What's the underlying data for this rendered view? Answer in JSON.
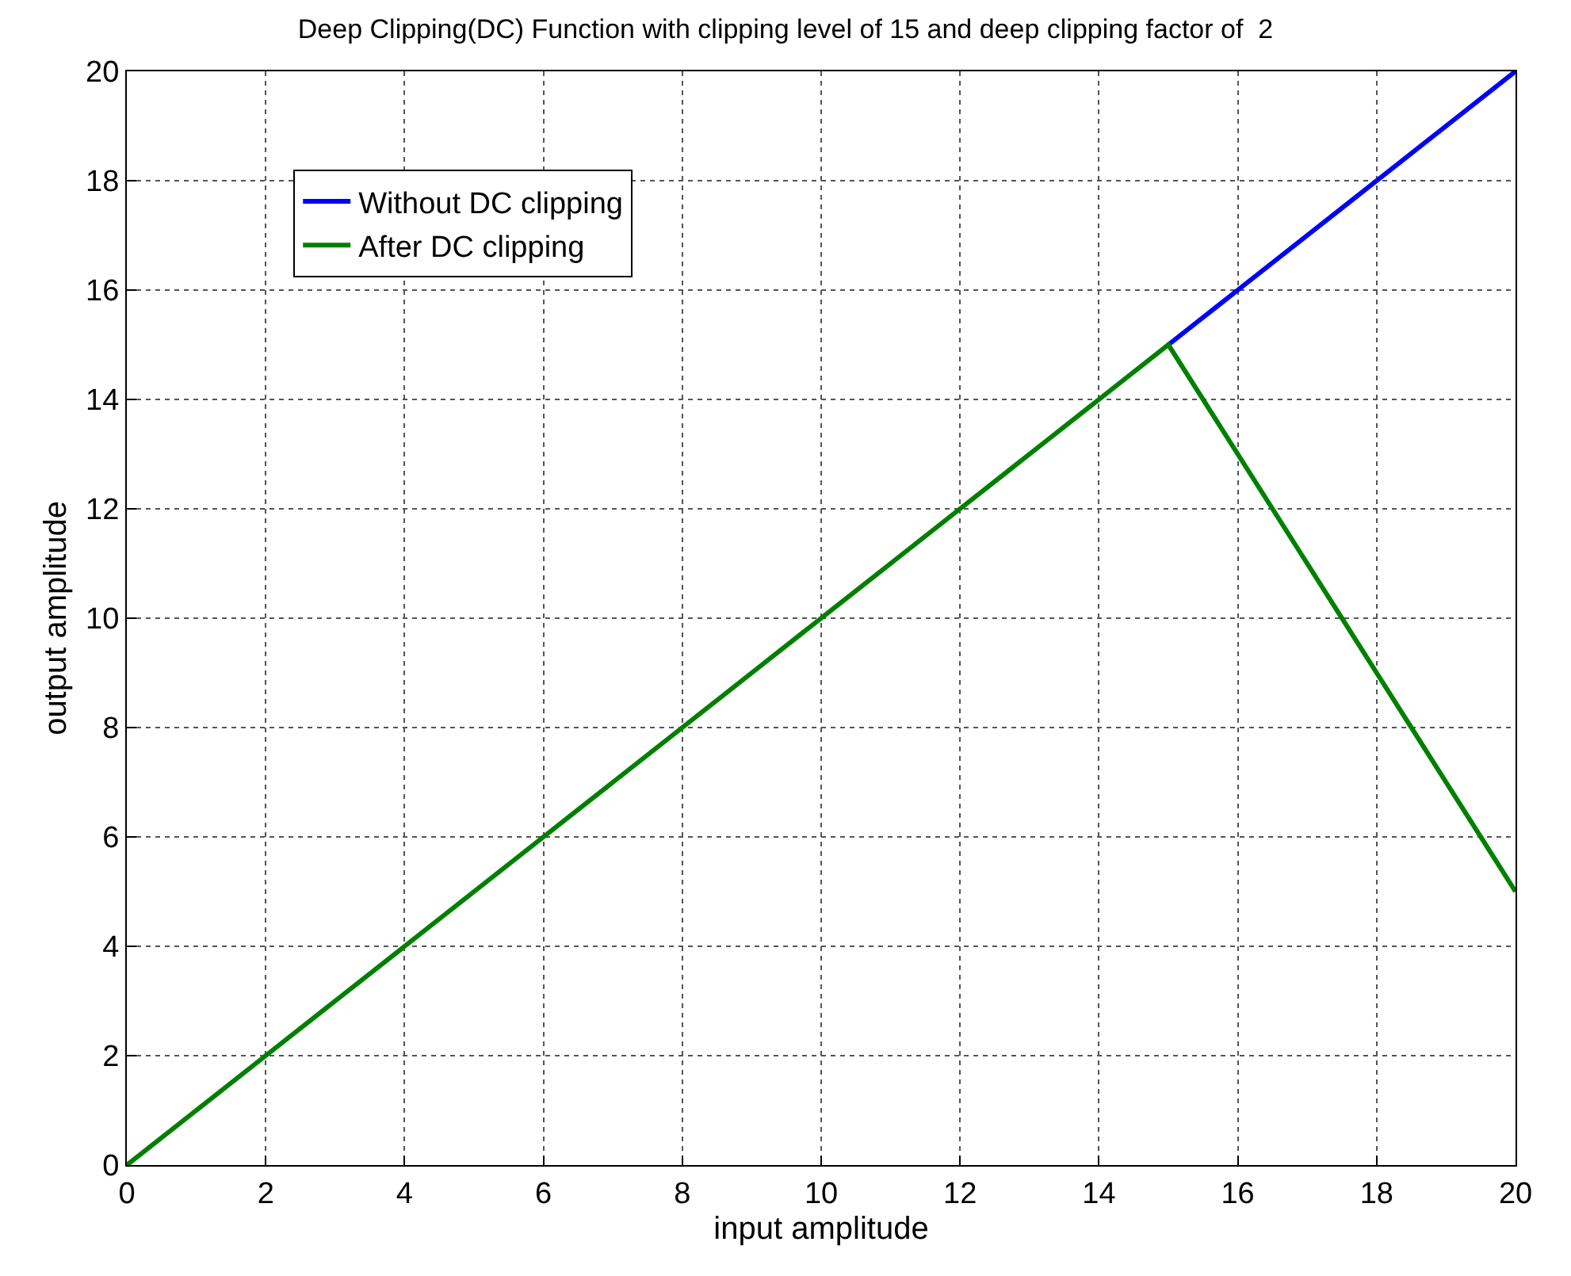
{
  "chart_data": {
    "type": "line",
    "title": "Deep Clipping(DC) Function with clipping level of 15 and deep clipping factor of  2",
    "xlabel": "input amplitude",
    "ylabel": "output amplitude",
    "x": [
      0,
      1,
      2,
      3,
      4,
      5,
      6,
      7,
      8,
      9,
      10,
      11,
      12,
      13,
      14,
      15,
      16,
      17,
      18,
      19,
      20
    ],
    "series": [
      {
        "name": "Without DC clipping",
        "color": "#0000ff",
        "values": [
          null,
          null,
          null,
          null,
          null,
          null,
          null,
          null,
          null,
          null,
          null,
          null,
          null,
          null,
          null,
          15,
          16,
          17,
          18,
          19,
          20
        ]
      },
      {
        "name": "After DC clipping",
        "color": "#008000",
        "values": [
          0,
          1,
          2,
          3,
          4,
          5,
          6,
          7,
          8,
          9,
          10,
          11,
          12,
          13,
          14,
          15,
          13,
          11,
          9,
          7,
          5
        ]
      }
    ],
    "xlim": [
      0,
      20
    ],
    "xticks": [
      0,
      2,
      4,
      6,
      8,
      10,
      12,
      14,
      16,
      18,
      20
    ],
    "ylim": [
      0,
      20
    ],
    "yticks": [
      0,
      2,
      4,
      6,
      8,
      10,
      12,
      14,
      16,
      18,
      20
    ],
    "grid": true,
    "legend": "top left",
    "line_style": "solid",
    "marker": "none"
  }
}
